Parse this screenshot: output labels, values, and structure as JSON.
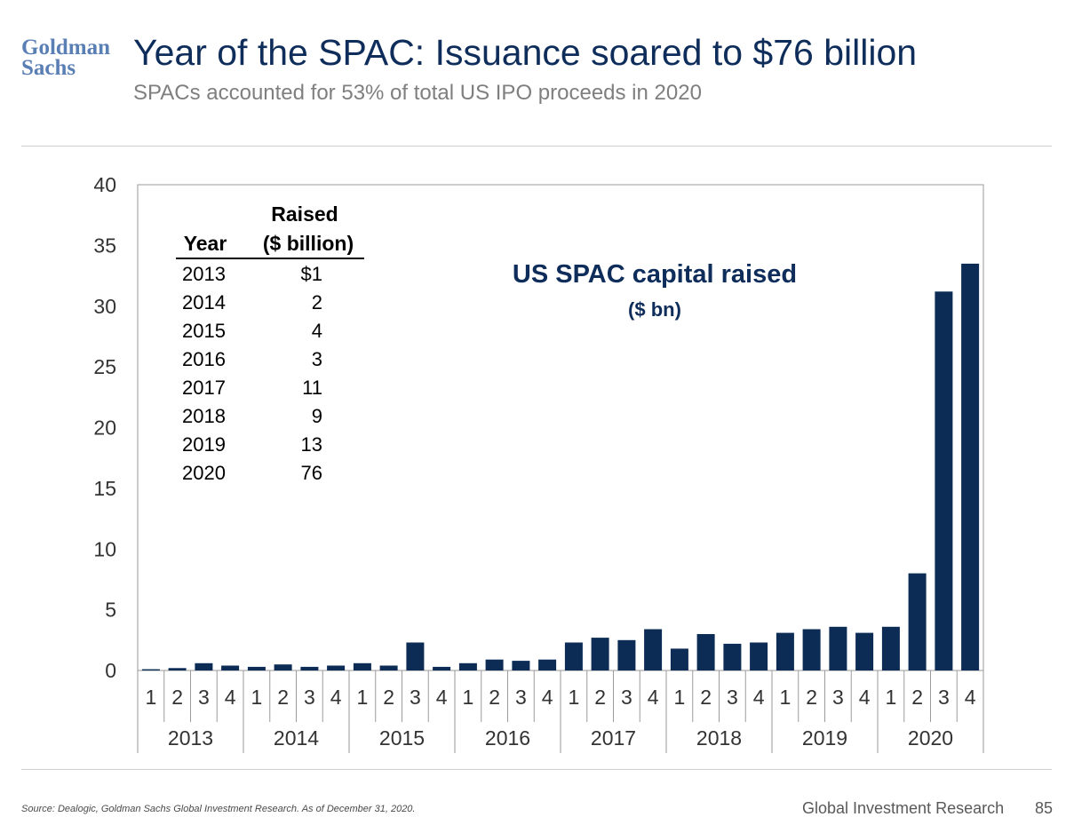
{
  "header": {
    "logo_line1": "Goldman",
    "logo_line2": "Sachs",
    "title": "Year of the SPAC: Issuance soared to $76 billion",
    "subtitle": "SPACs accounted for 53% of total US IPO proceeds in 2020"
  },
  "chart_data": {
    "type": "bar",
    "title": "US SPAC capital raised",
    "subtitle": "($ bn)",
    "xlabel": "",
    "ylabel": "",
    "ylim": [
      0,
      40
    ],
    "yticks": [
      0,
      5,
      10,
      15,
      20,
      25,
      30,
      35,
      40
    ],
    "years": [
      "2013",
      "2014",
      "2015",
      "2016",
      "2017",
      "2018",
      "2019",
      "2020"
    ],
    "quarter_labels": [
      "1",
      "2",
      "3",
      "4"
    ],
    "series": [
      {
        "name": "US SPAC capital raised ($ bn)",
        "color": "#0c2c55",
        "values": [
          0.1,
          0.2,
          0.6,
          0.4,
          0.3,
          0.5,
          0.3,
          0.4,
          0.6,
          0.4,
          2.3,
          0.3,
          0.6,
          0.9,
          0.8,
          0.9,
          2.3,
          2.7,
          2.5,
          3.4,
          1.8,
          3.0,
          2.2,
          2.3,
          3.1,
          3.4,
          3.6,
          3.1,
          3.6,
          8.0,
          31.2,
          33.5
        ]
      }
    ],
    "grid": false,
    "legend": "none",
    "table": {
      "header_year": "Year",
      "header_raised_line1": "Raised",
      "header_raised_line2": "($ billion)",
      "rows": [
        {
          "year": "2013",
          "raised": "$1"
        },
        {
          "year": "2014",
          "raised": "2"
        },
        {
          "year": "2015",
          "raised": "4"
        },
        {
          "year": "2016",
          "raised": "3"
        },
        {
          "year": "2017",
          "raised": "11"
        },
        {
          "year": "2018",
          "raised": "9"
        },
        {
          "year": "2019",
          "raised": "13"
        },
        {
          "year": "2020",
          "raised": "76"
        }
      ]
    }
  },
  "footer": {
    "source": "Source: Dealogic, Goldman Sachs Global Investment Research. As of December 31, 2020.",
    "org": "Global Investment Research",
    "page": "85"
  }
}
